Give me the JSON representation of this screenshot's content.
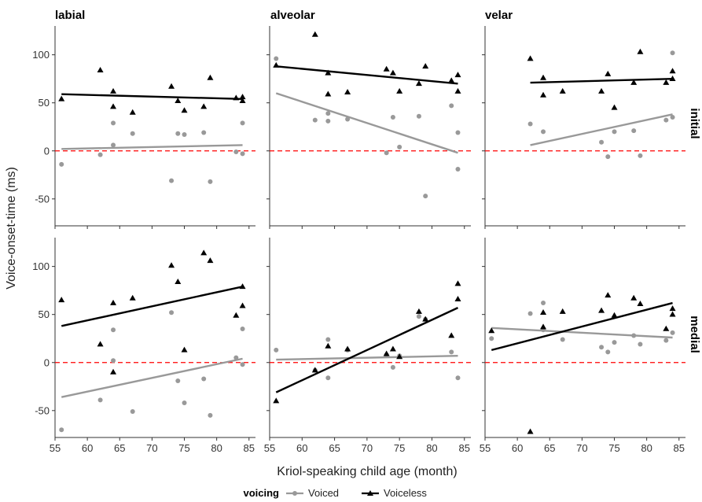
{
  "chart_data": {
    "type": "scatter",
    "facet_columns": [
      "labial",
      "alveolar",
      "velar"
    ],
    "facet_rows": [
      "initial",
      "medial"
    ],
    "xlabel": "Kriol-speaking child age (month)",
    "ylabel": "Voice-onset-time (ms)",
    "xlim": [
      55,
      86
    ],
    "ylim": [
      -78,
      130
    ],
    "xticks": [
      55,
      60,
      65,
      70,
      75,
      80,
      85
    ],
    "yticks": [
      -50,
      0,
      50,
      100
    ],
    "reference_line": 0,
    "legend": {
      "title": "voicing",
      "position": "bottom",
      "entries": [
        "Voiced",
        "Voiceless"
      ]
    },
    "colors": {
      "Voiced": "#999999",
      "Voiceless": "#000000",
      "reference": "#ff0000"
    },
    "panels": [
      {
        "column": "labial",
        "row": "initial",
        "Voiceless": {
          "points": [
            [
              56,
              54
            ],
            [
              62,
              84
            ],
            [
              64,
              62
            ],
            [
              64,
              46
            ],
            [
              67,
              40
            ],
            [
              73,
              67
            ],
            [
              74,
              52
            ],
            [
              75,
              42
            ],
            [
              78,
              46
            ],
            [
              79,
              76
            ],
            [
              83,
              55
            ],
            [
              84,
              56
            ],
            [
              84,
              52
            ]
          ],
          "fit": [
            [
              56,
              59
            ],
            [
              84,
              54
            ]
          ]
        },
        "Voiced": {
          "points": [
            [
              56,
              -14
            ],
            [
              62,
              -4
            ],
            [
              64,
              29
            ],
            [
              64,
              6
            ],
            [
              67,
              18
            ],
            [
              73,
              -31
            ],
            [
              74,
              18
            ],
            [
              75,
              17
            ],
            [
              78,
              19
            ],
            [
              79,
              -32
            ],
            [
              83,
              -1
            ],
            [
              84,
              29
            ],
            [
              84,
              -3
            ]
          ],
          "fit": [
            [
              56,
              2
            ],
            [
              84,
              6
            ]
          ]
        }
      },
      {
        "column": "alveolar",
        "row": "initial",
        "Voiceless": {
          "points": [
            [
              56,
              89
            ],
            [
              62,
              121
            ],
            [
              64,
              81
            ],
            [
              64,
              59
            ],
            [
              67,
              61
            ],
            [
              73,
              85
            ],
            [
              74,
              81
            ],
            [
              75,
              62
            ],
            [
              78,
              70
            ],
            [
              79,
              88
            ],
            [
              83,
              73
            ],
            [
              84,
              79
            ],
            [
              84,
              62
            ]
          ],
          "fit": [
            [
              56,
              88
            ],
            [
              84,
              70
            ]
          ]
        },
        "Voiced": {
          "points": [
            [
              56,
              96
            ],
            [
              62,
              32
            ],
            [
              64,
              39
            ],
            [
              64,
              31
            ],
            [
              67,
              33
            ],
            [
              73,
              -2
            ],
            [
              74,
              35
            ],
            [
              75,
              4
            ],
            [
              78,
              36
            ],
            [
              79,
              -47
            ],
            [
              83,
              47
            ],
            [
              84,
              19
            ],
            [
              84,
              -19
            ]
          ],
          "fit": [
            [
              56,
              60
            ],
            [
              84,
              -2
            ]
          ]
        }
      },
      {
        "column": "velar",
        "row": "initial",
        "Voiceless": {
          "points": [
            [
              62,
              96
            ],
            [
              64,
              76
            ],
            [
              64,
              58
            ],
            [
              67,
              62
            ],
            [
              73,
              62
            ],
            [
              74,
              80
            ],
            [
              75,
              45
            ],
            [
              78,
              71
            ],
            [
              79,
              103
            ],
            [
              83,
              71
            ],
            [
              84,
              83
            ],
            [
              84,
              75
            ]
          ],
          "fit": [
            [
              62,
              71
            ],
            [
              84,
              75
            ]
          ]
        },
        "Voiced": {
          "points": [
            [
              62,
              28
            ],
            [
              64,
              20
            ],
            [
              73,
              9
            ],
            [
              74,
              -6
            ],
            [
              75,
              20
            ],
            [
              78,
              21
            ],
            [
              79,
              -5
            ],
            [
              83,
              32
            ],
            [
              84,
              102
            ],
            [
              84,
              35
            ]
          ],
          "fit": [
            [
              62,
              6
            ],
            [
              84,
              38
            ]
          ]
        }
      },
      {
        "column": "labial",
        "row": "medial",
        "Voiceless": {
          "points": [
            [
              56,
              65
            ],
            [
              62,
              19
            ],
            [
              64,
              62
            ],
            [
              64,
              -10
            ],
            [
              67,
              67
            ],
            [
              73,
              101
            ],
            [
              74,
              84
            ],
            [
              75,
              13
            ],
            [
              78,
              114
            ],
            [
              79,
              106
            ],
            [
              83,
              49
            ],
            [
              84,
              79
            ],
            [
              84,
              59
            ]
          ],
          "fit": [
            [
              56,
              38
            ],
            [
              84,
              79
            ]
          ]
        },
        "Voiced": {
          "points": [
            [
              56,
              -70
            ],
            [
              62,
              -39
            ],
            [
              64,
              34
            ],
            [
              64,
              2
            ],
            [
              67,
              -51
            ],
            [
              73,
              52
            ],
            [
              74,
              -19
            ],
            [
              75,
              -42
            ],
            [
              78,
              -17
            ],
            [
              79,
              -55
            ],
            [
              83,
              5
            ],
            [
              84,
              35
            ],
            [
              84,
              -2
            ]
          ],
          "fit": [
            [
              56,
              -36
            ],
            [
              84,
              4
            ]
          ]
        }
      },
      {
        "column": "alveolar",
        "row": "medial",
        "Voiceless": {
          "points": [
            [
              56,
              -40
            ],
            [
              62,
              -8
            ],
            [
              64,
              17
            ],
            [
              67,
              14
            ],
            [
              73,
              9
            ],
            [
              74,
              14
            ],
            [
              75,
              6
            ],
            [
              78,
              53
            ],
            [
              79,
              45
            ],
            [
              83,
              28
            ],
            [
              84,
              82
            ],
            [
              84,
              66
            ]
          ],
          "fit": [
            [
              56,
              -31
            ],
            [
              84,
              57
            ]
          ]
        },
        "Voiced": {
          "points": [
            [
              56,
              13
            ],
            [
              62,
              -8
            ],
            [
              64,
              24
            ],
            [
              64,
              -16
            ],
            [
              67,
              13
            ],
            [
              73,
              8
            ],
            [
              74,
              -5
            ],
            [
              75,
              7
            ],
            [
              78,
              48
            ],
            [
              79,
              45
            ],
            [
              83,
              11
            ],
            [
              84,
              -16
            ]
          ],
          "fit": [
            [
              56,
              3
            ],
            [
              84,
              7
            ]
          ]
        }
      },
      {
        "column": "velar",
        "row": "medial",
        "Voiceless": {
          "points": [
            [
              56,
              33
            ],
            [
              62,
              -72
            ],
            [
              64,
              52
            ],
            [
              64,
              37
            ],
            [
              67,
              53
            ],
            [
              73,
              54
            ],
            [
              74,
              70
            ],
            [
              75,
              49
            ],
            [
              78,
              67
            ],
            [
              79,
              61
            ],
            [
              83,
              35
            ],
            [
              84,
              56
            ],
            [
              84,
              50
            ]
          ],
          "fit": [
            [
              56,
              13
            ],
            [
              84,
              62
            ]
          ]
        },
        "Voiced": {
          "points": [
            [
              56,
              25
            ],
            [
              62,
              51
            ],
            [
              64,
              62
            ],
            [
              64,
              34
            ],
            [
              67,
              24
            ],
            [
              73,
              16
            ],
            [
              74,
              11
            ],
            [
              75,
              21
            ],
            [
              78,
              28
            ],
            [
              79,
              19
            ],
            [
              83,
              23
            ],
            [
              84,
              31
            ]
          ],
          "fit": [
            [
              56,
              36
            ],
            [
              84,
              26
            ]
          ]
        }
      }
    ]
  }
}
